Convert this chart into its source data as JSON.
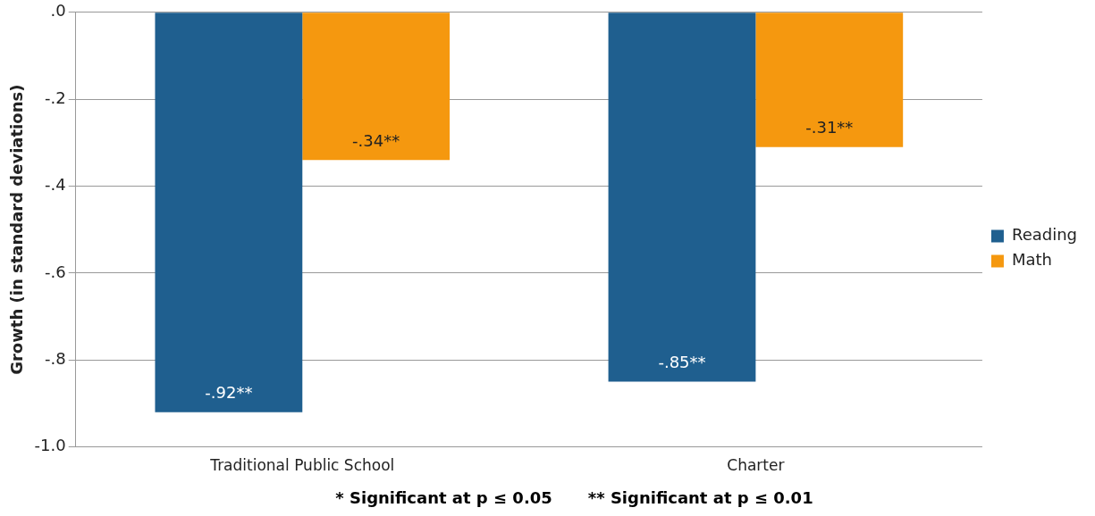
{
  "chart_data": {
    "type": "bar",
    "ylabel": "Growth (in standard deviations)",
    "categories": [
      "Traditional Public School",
      "Charter"
    ],
    "series": [
      {
        "name": "Reading",
        "color": "#1f5f8f",
        "values": [
          -0.92,
          -0.85
        ],
        "value_labels": [
          "-.92**",
          "-.85**"
        ]
      },
      {
        "name": "Math",
        "color": "#f5980f",
        "values": [
          -0.34,
          -0.31
        ],
        "value_labels": [
          "-.34**",
          "-.31**"
        ]
      }
    ],
    "ylim": [
      -1.0,
      0.0
    ],
    "yticks": [
      {
        "value": -1.0,
        "label": "-1.0"
      },
      {
        "value": -0.8,
        "label": "-.8"
      },
      {
        "value": -0.6,
        "label": "-.6"
      },
      {
        "value": -0.4,
        "label": "-.4"
      },
      {
        "value": -0.2,
        "label": "-.2"
      },
      {
        "value": 0.0,
        "label": ".0"
      }
    ],
    "grid": "y",
    "legend": "right",
    "annotations": [
      "* Significant at p ≤ 0.05",
      "** Significant at p ≤ 0.01"
    ]
  }
}
